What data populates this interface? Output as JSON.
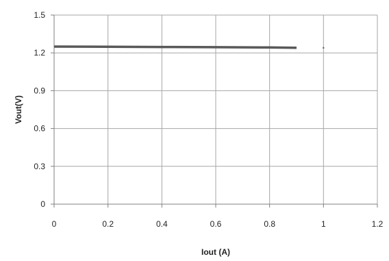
{
  "chart_data": {
    "type": "line",
    "title": "",
    "xlabel": "Iout (A)",
    "ylabel": "Vout(V)",
    "xlim": [
      0,
      1.2
    ],
    "ylim": [
      0,
      1.5
    ],
    "x_ticks": [
      "0",
      "0.2",
      "0.4",
      "0.6",
      "0.8",
      "1",
      "1.2"
    ],
    "y_ticks": [
      "0",
      "0.3",
      "0.6",
      "0.9",
      "1.2",
      "1.5"
    ],
    "grid": true,
    "legend": "none",
    "series": [
      {
        "x": [
          0,
          0.2,
          0.4,
          0.6,
          0.8,
          0.9
        ],
        "values": [
          1.25,
          1.249,
          1.247,
          1.245,
          1.243,
          1.241
        ],
        "color": "#595959"
      }
    ],
    "marker_points": [
      {
        "x": 1.0,
        "y": 1.24
      }
    ],
    "colors": {
      "grid": "#a6a6a6",
      "axis": "#7f7f7f",
      "line": "#595959"
    }
  }
}
